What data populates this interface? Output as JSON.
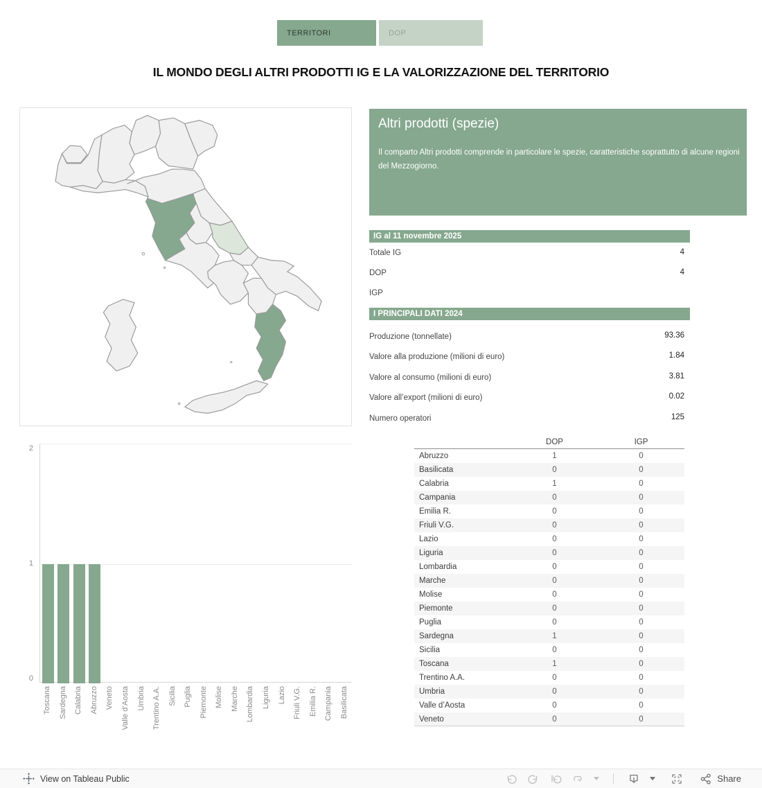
{
  "tabs": [
    {
      "label": "TERRITORI",
      "active": true
    },
    {
      "label": "DOP",
      "active": false
    }
  ],
  "title": "IL MONDO DEGLI ALTRI PRODOTTI IG E LA VALORIZZAZIONE DEL TERRITORIO",
  "info_panel": {
    "title": "Altri prodotti (spezie)",
    "description": "Il comparto Altri prodotti comprende in particolare le spezie, caratteristiche soprattutto di alcune regioni del Mezzogiorno."
  },
  "ig_section": {
    "header": "IG al 11 novembre 2025",
    "rows": [
      {
        "label": "Totale IG",
        "value": "4"
      },
      {
        "label": "DOP",
        "value": "4"
      },
      {
        "label": "IGP",
        "value": ""
      }
    ]
  },
  "dati_section": {
    "header": "I PRINCIPALI DATI 2024",
    "rows": [
      {
        "label": "Produzione (tonnellate)",
        "value": "93.36"
      },
      {
        "label": "Valore alla produzione (milioni di euro)",
        "value": "1.84"
      },
      {
        "label": "Valore al consumo (milioni di euro)",
        "value": "3.81"
      },
      {
        "label": "Valore all’export (milioni di euro)",
        "value": "0.02"
      },
      {
        "label": "Numero operatori",
        "value": "125"
      }
    ]
  },
  "region_table": {
    "columns": [
      "DOP",
      "IGP"
    ],
    "rows": [
      {
        "region": "Abruzzo",
        "dop": "1",
        "igp": "0"
      },
      {
        "region": "Basilicata",
        "dop": "0",
        "igp": "0"
      },
      {
        "region": "Calabria",
        "dop": "1",
        "igp": "0"
      },
      {
        "region": "Campania",
        "dop": "0",
        "igp": "0"
      },
      {
        "region": "Emilia R.",
        "dop": "0",
        "igp": "0"
      },
      {
        "region": "Friuli V.G.",
        "dop": "0",
        "igp": "0"
      },
      {
        "region": "Lazio",
        "dop": "0",
        "igp": "0"
      },
      {
        "region": "Liguria",
        "dop": "0",
        "igp": "0"
      },
      {
        "region": "Lombardia",
        "dop": "0",
        "igp": "0"
      },
      {
        "region": "Marche",
        "dop": "0",
        "igp": "0"
      },
      {
        "region": "Molise",
        "dop": "0",
        "igp": "0"
      },
      {
        "region": "Piemonte",
        "dop": "0",
        "igp": "0"
      },
      {
        "region": "Puglia",
        "dop": "0",
        "igp": "0"
      },
      {
        "region": "Sardegna",
        "dop": "1",
        "igp": "0"
      },
      {
        "region": "Sicilia",
        "dop": "0",
        "igp": "0"
      },
      {
        "region": "Toscana",
        "dop": "1",
        "igp": "0"
      },
      {
        "region": "Trentino A.A.",
        "dop": "0",
        "igp": "0"
      },
      {
        "region": "Umbria",
        "dop": "0",
        "igp": "0"
      },
      {
        "region": "Valle d’Aosta",
        "dop": "0",
        "igp": "0"
      },
      {
        "region": "Veneto",
        "dop": "0",
        "igp": "0"
      }
    ]
  },
  "chart_data": {
    "type": "bar",
    "categories": [
      "Toscana",
      "Sardegna",
      "Calabria",
      "Abruzzo",
      "Veneto",
      "Valle d’Aosta",
      "Umbria",
      "Trentino A.A.",
      "Sicilia",
      "Puglia",
      "Piemonte",
      "Molise",
      "Marche",
      "Lombardia",
      "Liguria",
      "Lazio",
      "Friuli V.G.",
      "Emilia R.",
      "Campania",
      "Basilicata"
    ],
    "values": [
      1,
      1,
      1,
      1,
      0,
      0,
      0,
      0,
      0,
      0,
      0,
      0,
      0,
      0,
      0,
      0,
      0,
      0,
      0,
      0
    ],
    "title": "",
    "xlabel": "",
    "ylabel": "",
    "ylim": [
      0,
      2
    ],
    "yticks": [
      0,
      1,
      2
    ],
    "bar_color": "#85a88e",
    "grid": "horizontal-light"
  },
  "map": {
    "country": "Italia",
    "default_fill": "#f0f0f1",
    "border_color": "#9a9a9a",
    "highlights": {
      "toscana": "#85a88e",
      "abruzzo": "#dde6da",
      "calabria": "#85a88e"
    },
    "regions": [
      "Piemonte",
      "Valle d’Aosta",
      "Liguria",
      "Lombardia",
      "Trentino A.A.",
      "Veneto",
      "Friuli V.G.",
      "Emilia R.",
      "Toscana",
      "Marche",
      "Umbria",
      "Abruzzo",
      "Lazio",
      "Molise",
      "Campania",
      "Puglia",
      "Basilicata",
      "Calabria",
      "Sicilia",
      "Sardegna"
    ]
  },
  "footer": {
    "view_label": "View on Tableau Public",
    "share_label": "Share"
  },
  "colors": {
    "accent_green": "#85a88e",
    "light_green_tab": "#c4d3c6",
    "pale_green_region": "#dde6da",
    "zebra_stripe": "#f5f5f5"
  }
}
